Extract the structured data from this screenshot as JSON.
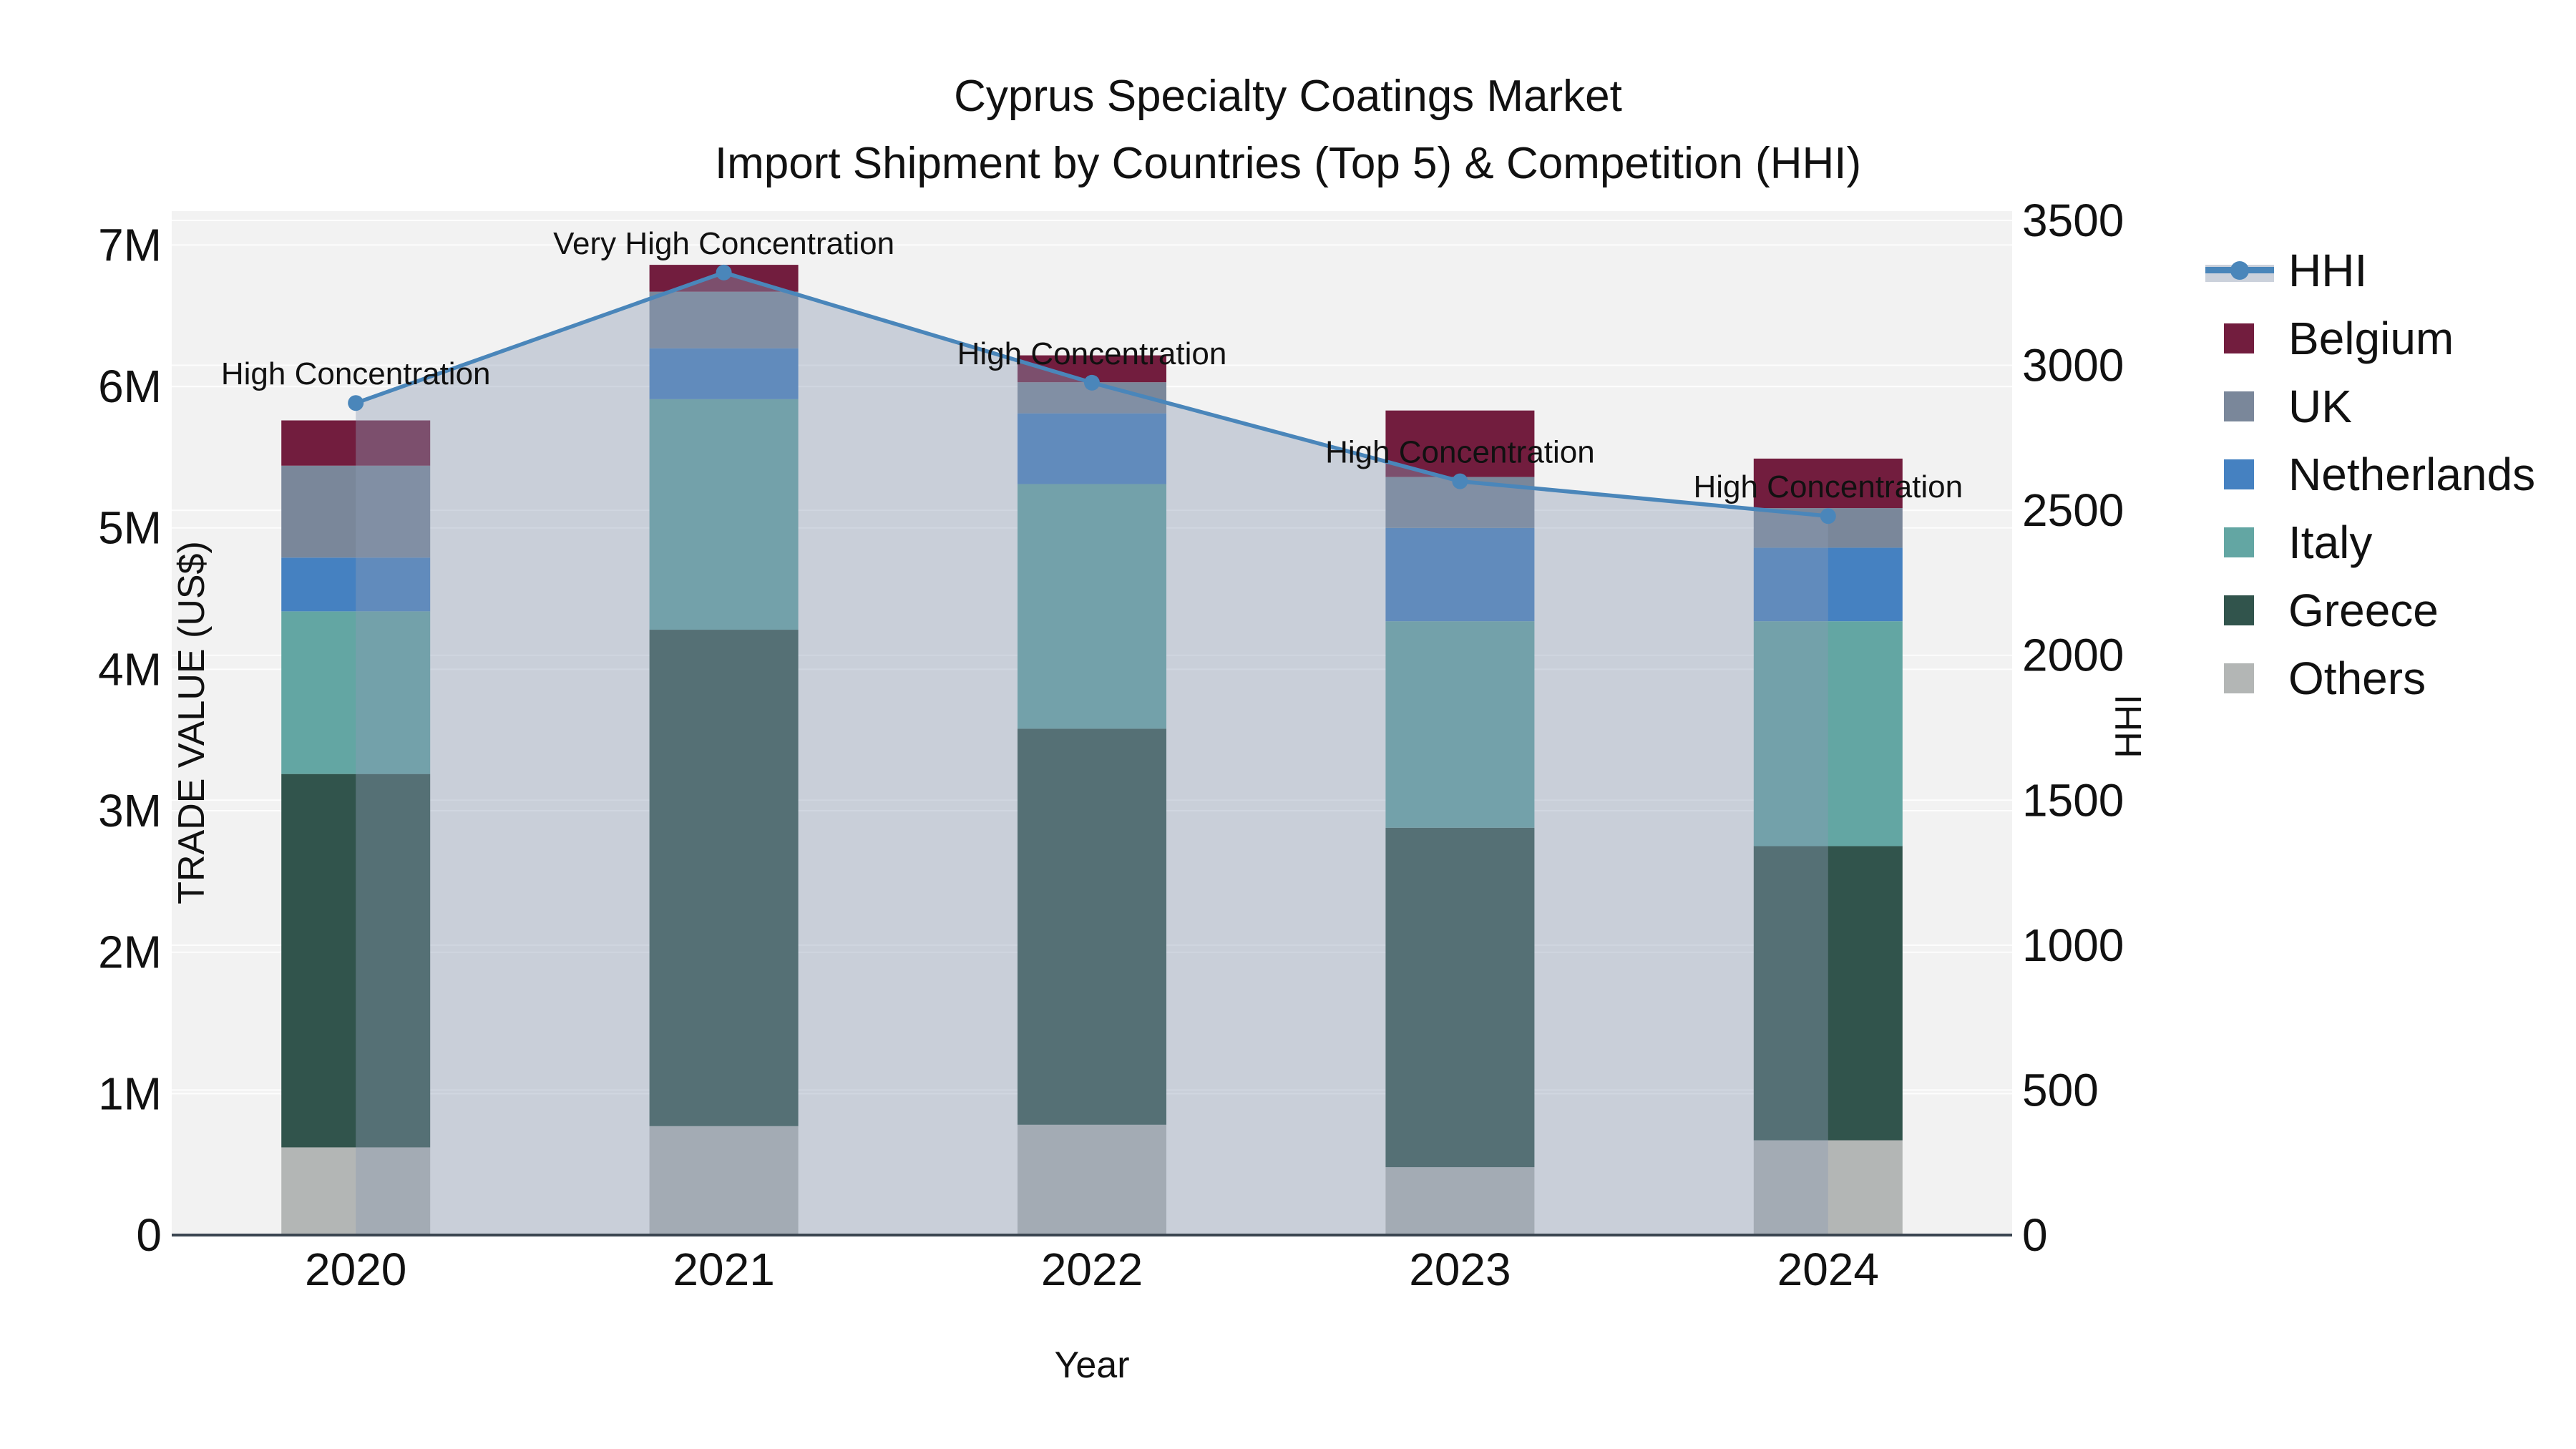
{
  "title": {
    "line1": "Cyprus Specialty Coatings Market",
    "line2": "Import Shipment by Countries (Top 5) & Competition (HHI)"
  },
  "axes": {
    "left": {
      "title": "TRADE VALUE (US$)",
      "tick_labels": [
        "0",
        "1M",
        "2M",
        "3M",
        "4M",
        "5M",
        "6M",
        "7M"
      ],
      "tick_values_musd": [
        0,
        1,
        2,
        3,
        4,
        5,
        6,
        7
      ],
      "range_musd": [
        0,
        7.24
      ]
    },
    "right": {
      "title": "HHI",
      "tick_labels": [
        "0",
        "500",
        "1000",
        "1500",
        "2000",
        "2500",
        "3000",
        "3500"
      ],
      "tick_values": [
        0,
        500,
        1000,
        1500,
        2000,
        2500,
        3000,
        3500
      ],
      "range": [
        0,
        3532
      ]
    },
    "x": {
      "title": "Year",
      "tick_labels": [
        "2020",
        "2021",
        "2022",
        "2023",
        "2024"
      ]
    }
  },
  "legend": {
    "items": [
      {
        "label": "HHI",
        "type": "line"
      },
      {
        "label": "Belgium",
        "type": "swatch",
        "color": "#721d3e"
      },
      {
        "label": "UK",
        "type": "swatch",
        "color": "#7a879a"
      },
      {
        "label": "Netherlands",
        "type": "swatch",
        "color": "#4581c1"
      },
      {
        "label": "Italy",
        "type": "swatch",
        "color": "#63a6a3"
      },
      {
        "label": "Greece",
        "type": "swatch",
        "color": "#31544c"
      },
      {
        "label": "Others",
        "type": "swatch",
        "color": "#b3b6b5"
      }
    ]
  },
  "chart_data": {
    "type": "bar+line",
    "title": "Cyprus Specialty Coatings Market — Import Shipment by Countries (Top 5) & Competition (HHI)",
    "categories": [
      "2020",
      "2021",
      "2022",
      "2023",
      "2024"
    ],
    "bar_value_unit": "million US$",
    "stack_order_note": "series listed bottom-to-top of the stacked bars",
    "series": [
      {
        "name": "Others",
        "color": "#b3b6b5",
        "values_musd": [
          0.62,
          0.77,
          0.78,
          0.48,
          0.67
        ]
      },
      {
        "name": "Greece",
        "color": "#31544c",
        "values_musd": [
          2.64,
          3.51,
          2.8,
          2.4,
          2.08
        ]
      },
      {
        "name": "Italy",
        "color": "#63a6a3",
        "values_musd": [
          1.15,
          1.63,
          1.73,
          1.46,
          1.59
        ]
      },
      {
        "name": "Netherlands",
        "color": "#4581c1",
        "values_musd": [
          0.38,
          0.36,
          0.5,
          0.66,
          0.52
        ]
      },
      {
        "name": "UK",
        "color": "#7a879a",
        "values_musd": [
          0.65,
          0.4,
          0.22,
          0.36,
          0.28
        ]
      },
      {
        "name": "Belgium",
        "color": "#721d3e",
        "values_musd": [
          0.32,
          0.19,
          0.19,
          0.47,
          0.35
        ]
      }
    ],
    "bar_totals_musd": [
      5.76,
      6.86,
      6.22,
      5.83,
      5.49
    ],
    "hhi": {
      "name": "HHI",
      "values": [
        2870,
        3320,
        2940,
        2600,
        2480
      ],
      "annotations": [
        "High Concentration",
        "Very High Concentration",
        "High Concentration",
        "High Concentration",
        "High Concentration"
      ],
      "line_color": "#4a86ba",
      "marker_color": "#4a86ba",
      "area_fill_color": "rgba(140,155,180,0.40)"
    },
    "xlabel": "Year",
    "ylabel_left": "TRADE VALUE (US$)",
    "ylabel_right": "HHI",
    "ylim_left_musd": [
      0,
      7.24
    ],
    "ylim_right": [
      0,
      3532
    ],
    "grid": {
      "horizontal": true,
      "color": "rgba(255,255,255,0.85)"
    },
    "plot_bg": "#f2f2f2",
    "paper_bg": "#ffffff",
    "axis_line_color": "#3a4550",
    "text_color": "#111111",
    "legend_position": "right"
  }
}
